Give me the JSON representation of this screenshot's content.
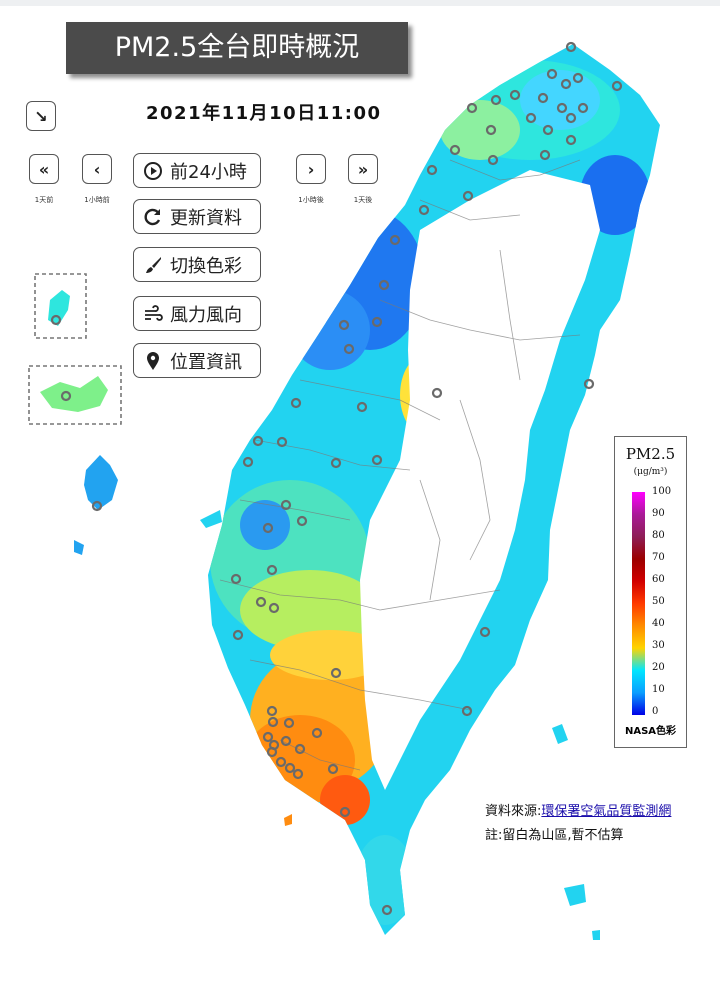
{
  "title": "PM2.5全台即時概況",
  "datetime": "2021年11月10日11:00",
  "nav": {
    "day_back": {
      "glyph": "«",
      "caption": "1天前"
    },
    "hour_back": {
      "glyph": "‹",
      "caption": "1小時前"
    },
    "hour_fwd": {
      "glyph": "›",
      "caption": "1小時後"
    },
    "day_fwd": {
      "glyph": "»",
      "caption": "1天後"
    },
    "collapse_glyph": "↘"
  },
  "menu": [
    {
      "label": "前24小時",
      "icon": "play-circle-icon"
    },
    {
      "label": "更新資料",
      "icon": "refresh-icon"
    },
    {
      "label": "切換色彩",
      "icon": "paint-brush-icon"
    },
    {
      "label": "風力風向",
      "icon": "wind-icon"
    },
    {
      "label": "位置資訊",
      "icon": "map-pin-icon"
    }
  ],
  "legend": {
    "title": "PM2.5",
    "unit": "(μg/m³)",
    "ticks": [
      "100",
      "90",
      "80",
      "70",
      "60",
      "50",
      "40",
      "30",
      "20",
      "10",
      "0"
    ],
    "name": "NASA色彩",
    "colors": [
      "#ff00ff",
      "#aa1a98",
      "#8e1e57",
      "#9b0000",
      "#d10000",
      "#ff3a00",
      "#ff8c00",
      "#ffd400",
      "#00e6ff",
      "#0a9eff",
      "#0000e6"
    ]
  },
  "source": {
    "prefix": "資料來源:",
    "link": "環保署空氣品質監測網"
  },
  "note": "註:留白為山區,暫不估算"
}
